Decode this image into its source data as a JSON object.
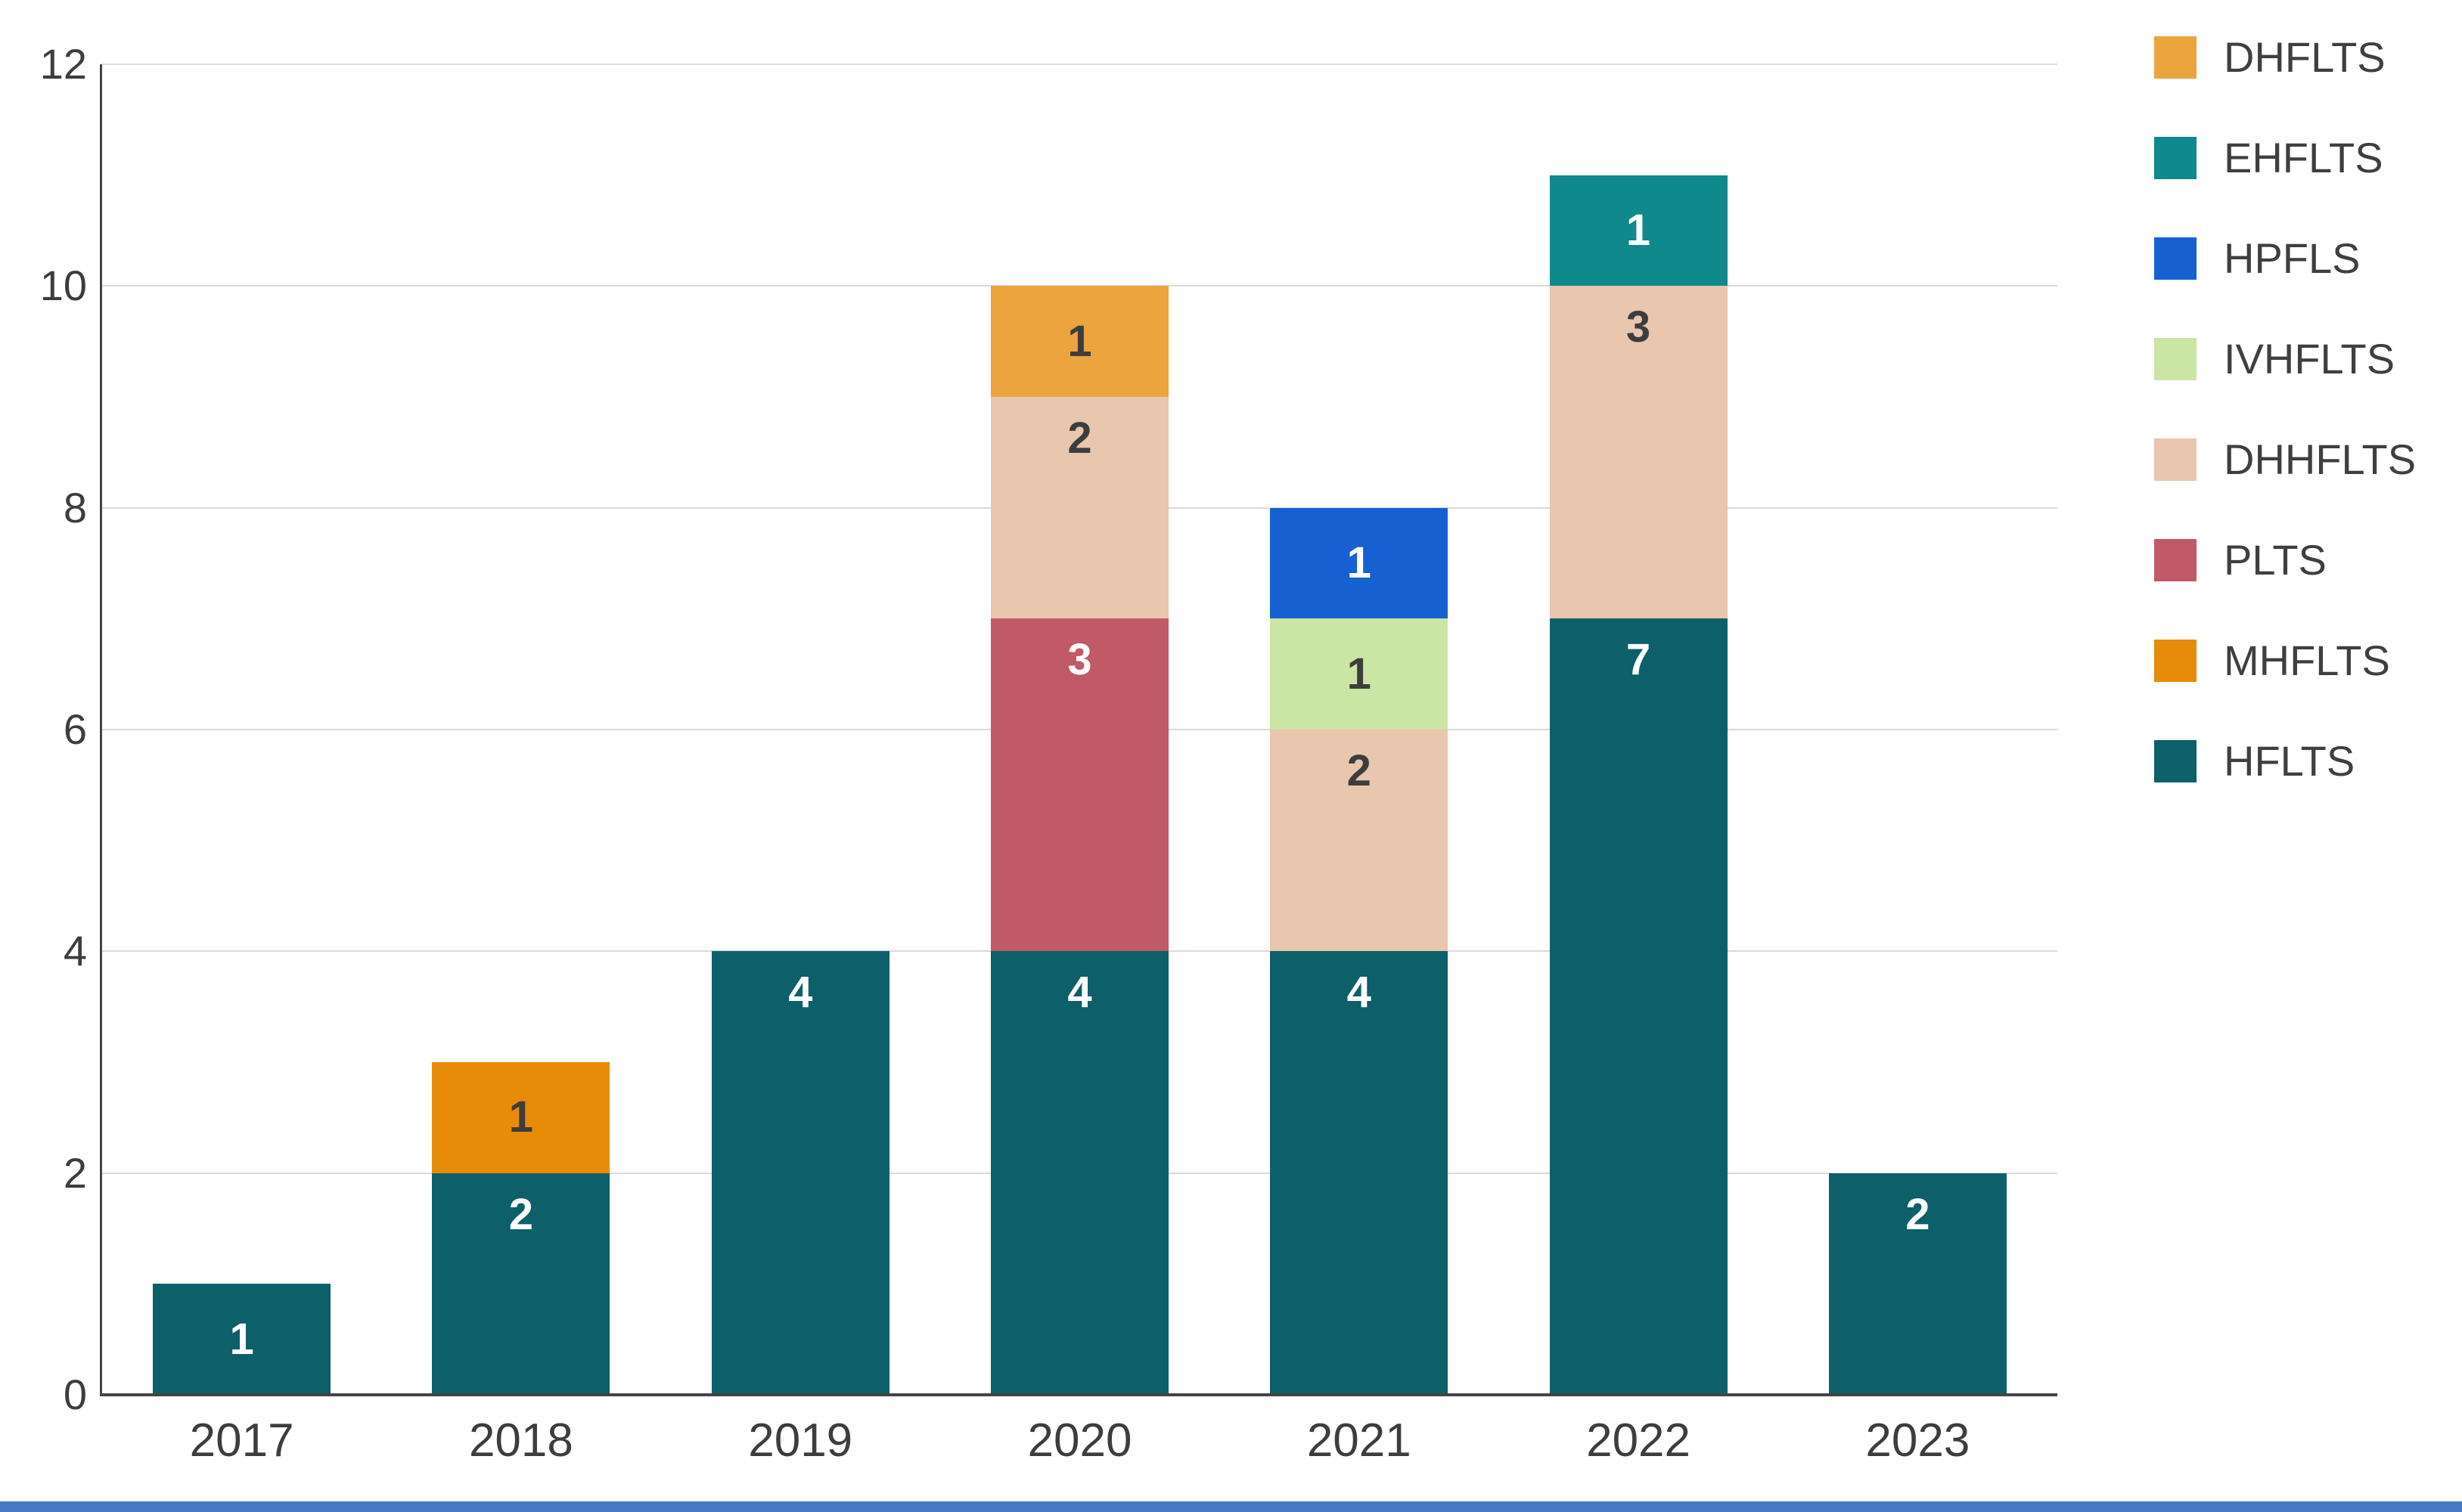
{
  "page": {
    "background": "#ffffff",
    "bottom_strip_color": "#4779c4"
  },
  "chart_data": {
    "type": "bar",
    "stacked": true,
    "title": "",
    "xlabel": "",
    "ylabel": "",
    "categories": [
      "2017",
      "2018",
      "2019",
      "2020",
      "2021",
      "2022",
      "2023"
    ],
    "series": [
      {
        "name": "HFLTS",
        "color": "#0d5f69",
        "label_color": "#ffffff",
        "values": [
          1,
          2,
          4,
          4,
          4,
          7,
          2
        ]
      },
      {
        "name": "MHFLTS",
        "color": "#e78c09",
        "label_color": "#3d3d3d",
        "values": [
          0,
          1,
          0,
          0,
          0,
          0,
          0
        ]
      },
      {
        "name": "PLTS",
        "color": "#c05a67",
        "label_color": "#ffffff",
        "values": [
          0,
          0,
          0,
          3,
          0,
          0,
          0
        ]
      },
      {
        "name": "DHHFLTS",
        "color": "#e9c6ae",
        "label_color": "#3d3d3d",
        "values": [
          0,
          0,
          0,
          2,
          2,
          3,
          0
        ]
      },
      {
        "name": "IVHFLTS",
        "color": "#cbe5a4",
        "label_color": "#3d3d3d",
        "values": [
          0,
          0,
          0,
          0,
          1,
          0,
          0
        ]
      },
      {
        "name": "HPFLS",
        "color": "#1760d1",
        "label_color": "#ffffff",
        "values": [
          0,
          0,
          0,
          0,
          1,
          0,
          0
        ]
      },
      {
        "name": "DHFLTS",
        "color": "#eca43f",
        "label_color": "#3d3d3d",
        "values": [
          0,
          0,
          0,
          1,
          0,
          0,
          0
        ]
      },
      {
        "name": "EHFLTS",
        "color": "#10898c",
        "label_color": "#ffffff",
        "values": [
          0,
          0,
          0,
          0,
          0,
          1,
          0
        ]
      }
    ],
    "totals": [
      1,
      3,
      4,
      10,
      8,
      11,
      2
    ],
    "legend": {
      "position": "right",
      "items": [
        "DHFLTS",
        "EHFLTS",
        "HPFLS",
        "IVHFLTS",
        "DHHFLTS",
        "PLTS",
        "MHFLTS",
        "HFLTS"
      ]
    },
    "ylim": [
      0,
      12
    ],
    "yticks": [
      0,
      2,
      4,
      6,
      8,
      10,
      12
    ],
    "grid": true,
    "grid_color": "#dadada",
    "axis_color": "#444444",
    "tick_label_color": "#3d3d3d"
  }
}
